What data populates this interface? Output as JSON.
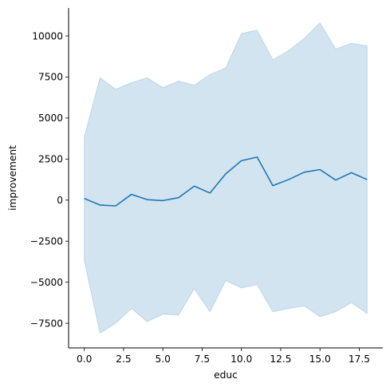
{
  "chart_data": {
    "type": "line",
    "title": "",
    "xlabel": "educ",
    "ylabel": "improvement",
    "xlim": [
      -1,
      19
    ],
    "ylim": [
      -9000,
      11700
    ],
    "xticks": [
      0.0,
      2.5,
      5.0,
      7.5,
      10.0,
      12.5,
      15.0,
      17.5
    ],
    "xtick_labels": [
      "0.0",
      "2.5",
      "5.0",
      "7.5",
      "10.0",
      "12.5",
      "15.0",
      "17.5"
    ],
    "yticks": [
      -7500,
      -5000,
      -2500,
      0,
      2500,
      5000,
      7500,
      10000
    ],
    "ytick_labels": [
      "−7500",
      "−5000",
      "−2500",
      "0",
      "2500",
      "5000",
      "7500",
      "10000"
    ],
    "grid": false,
    "colors": {
      "line": "#1f77b4",
      "band": "#1f77b4",
      "band_opacity": 0.2,
      "axis": "#000000"
    },
    "series": [
      {
        "x": [
          0,
          1,
          2,
          3,
          4,
          5,
          6,
          7,
          8,
          9,
          10,
          11,
          12,
          13,
          14,
          15,
          16,
          17,
          18
        ],
        "y": [
          100,
          -300,
          -350,
          350,
          30,
          -30,
          150,
          850,
          430,
          1600,
          2400,
          2620,
          880,
          1250,
          1700,
          1860,
          1220,
          1670,
          1250
        ],
        "lower": [
          -3700,
          -8100,
          -7500,
          -6600,
          -7400,
          -6950,
          -7000,
          -5400,
          -6800,
          -4900,
          -5350,
          -5150,
          -6800,
          -6600,
          -6450,
          -7100,
          -6800,
          -6250,
          -6900
        ],
        "upper": [
          3850,
          7450,
          6750,
          7150,
          7450,
          6850,
          7250,
          7000,
          7650,
          8050,
          10150,
          10350,
          8550,
          9100,
          9850,
          10800,
          9200,
          9550,
          9400
        ]
      }
    ]
  }
}
